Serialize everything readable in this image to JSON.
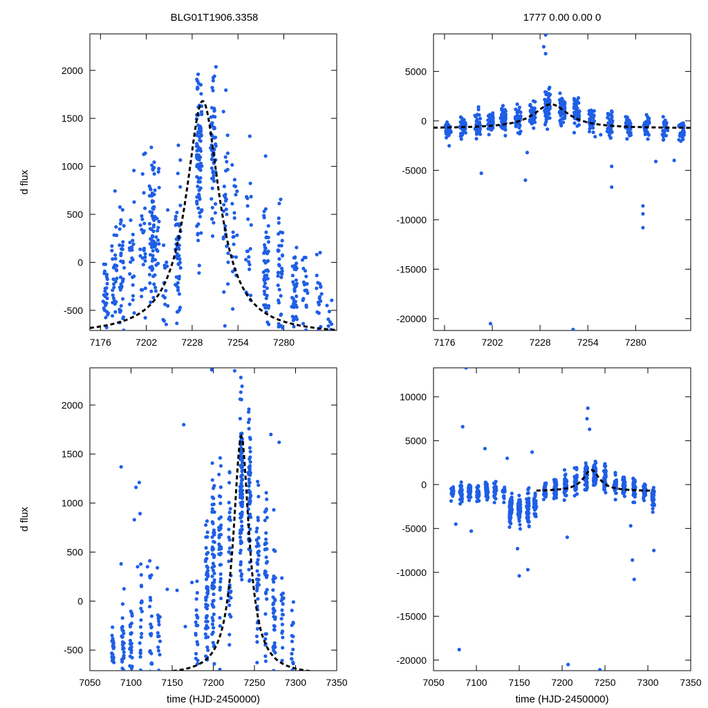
{
  "page": {
    "title_left": "BLG01T1906.3358",
    "title_right": "1777  0.00  0.00  0"
  },
  "colors": {
    "points": "#1f5fe6",
    "fit": "#000000"
  },
  "chart_data": [
    {
      "id": "p1",
      "type": "scatter",
      "xlim": [
        7170,
        7310
      ],
      "ylim": [
        -710,
        2380
      ],
      "xticks": [
        7176,
        7202,
        7228,
        7254,
        7280
      ],
      "yticks": [
        -500,
        0,
        500,
        1000,
        1500,
        2000
      ],
      "xlabel": "",
      "ylabel": "d flux",
      "fit": {
        "t0": 7234,
        "peak": 1680,
        "base": -760,
        "tE": 11.5
      },
      "segments": [
        {
          "t": 7179,
          "n": 30,
          "mean": -350,
          "sd": 250
        },
        {
          "t": 7184,
          "n": 30,
          "mean": -150,
          "sd": 300
        },
        {
          "t": 7188,
          "n": 40,
          "mean": -100,
          "sd": 400
        },
        {
          "t": 7194,
          "n": 25,
          "mean": 0,
          "sd": 400
        },
        {
          "t": 7200,
          "n": 30,
          "mean": 200,
          "sd": 400
        },
        {
          "t": 7205,
          "n": 60,
          "mean": 400,
          "sd": 400
        },
        {
          "t": 7208,
          "n": 25,
          "mean": 300,
          "sd": 450
        },
        {
          "t": 7213,
          "n": 15,
          "mean": 0,
          "sd": 400
        },
        {
          "t": 7220,
          "n": 50,
          "mean": 100,
          "sd": 400
        },
        {
          "t": 7232,
          "n": 90,
          "mean": 1100,
          "sd": 450
        },
        {
          "t": 7240,
          "n": 60,
          "mean": 1200,
          "sd": 400
        },
        {
          "t": 7247,
          "n": 30,
          "mean": 500,
          "sd": 550
        },
        {
          "t": 7252,
          "n": 20,
          "mean": 200,
          "sd": 500
        },
        {
          "t": 7260,
          "n": 20,
          "mean": 300,
          "sd": 400
        },
        {
          "t": 7270,
          "n": 50,
          "mean": 0,
          "sd": 400
        },
        {
          "t": 7278,
          "n": 40,
          "mean": -100,
          "sd": 350
        },
        {
          "t": 7286,
          "n": 40,
          "mean": -300,
          "sd": 300
        },
        {
          "t": 7292,
          "n": 20,
          "mean": -200,
          "sd": 300
        },
        {
          "t": 7300,
          "n": 20,
          "mean": -400,
          "sd": 250
        },
        {
          "t": 7306,
          "n": 10,
          "mean": -600,
          "sd": 150
        }
      ]
    },
    {
      "id": "p2",
      "type": "scatter",
      "xlim": [
        7170,
        7310
      ],
      "ylim": [
        -21200,
        8800
      ],
      "xticks": [
        7176,
        7202,
        7228,
        7254,
        7280
      ],
      "yticks": [
        -20000,
        -15000,
        -10000,
        -5000,
        0,
        5000
      ],
      "xlabel": "",
      "ylabel": "",
      "fit": {
        "t0": 7234,
        "peak": 1680,
        "base": -760,
        "tE": 11.5
      },
      "segments": [
        {
          "t": 7178,
          "n": 30,
          "mean": -1000,
          "sd": 500
        },
        {
          "t": 7186,
          "n": 40,
          "mean": -600,
          "sd": 500
        },
        {
          "t": 7194,
          "n": 40,
          "mean": -300,
          "sd": 600
        },
        {
          "t": 7201,
          "n": 40,
          "mean": -100,
          "sd": 600
        },
        {
          "t": 7208,
          "n": 60,
          "mean": 0,
          "sd": 600
        },
        {
          "t": 7216,
          "n": 50,
          "mean": 200,
          "sd": 600
        },
        {
          "t": 7224,
          "n": 40,
          "mean": 500,
          "sd": 700
        },
        {
          "t": 7232,
          "n": 80,
          "mean": 1500,
          "sd": 800
        },
        {
          "t": 7240,
          "n": 60,
          "mean": 1200,
          "sd": 700
        },
        {
          "t": 7248,
          "n": 40,
          "mean": 800,
          "sd": 700
        },
        {
          "t": 7256,
          "n": 30,
          "mean": 200,
          "sd": 600
        },
        {
          "t": 7266,
          "n": 40,
          "mean": -300,
          "sd": 600
        },
        {
          "t": 7276,
          "n": 40,
          "mean": -600,
          "sd": 600
        },
        {
          "t": 7286,
          "n": 40,
          "mean": -600,
          "sd": 600
        },
        {
          "t": 7296,
          "n": 30,
          "mean": -800,
          "sd": 500
        },
        {
          "t": 7305,
          "n": 30,
          "mean": -1000,
          "sd": 500
        }
      ],
      "outliers": [
        [
          7231,
          8700
        ],
        [
          7230,
          7500
        ],
        [
          7231,
          6800
        ],
        [
          7196,
          -5300
        ],
        [
          7220,
          -6000
        ],
        [
          7221,
          -3200
        ],
        [
          7267,
          -4600
        ],
        [
          7267,
          -6700
        ],
        [
          7284,
          -8600
        ],
        [
          7284,
          -10800
        ],
        [
          7284,
          -9400
        ],
        [
          7291,
          -4100
        ],
        [
          7301,
          -4000
        ],
        [
          7201,
          -20500
        ],
        [
          7246,
          -21100
        ],
        [
          7261,
          -1400
        ],
        [
          7258,
          -1600
        ]
      ]
    },
    {
      "id": "p3",
      "type": "scatter",
      "xlim": [
        7050,
        7350
      ],
      "ylim": [
        -710,
        2380
      ],
      "xticks": [
        7050,
        7100,
        7150,
        7200,
        7250,
        7300,
        7350
      ],
      "yticks": [
        -500,
        0,
        500,
        1000,
        1500,
        2000
      ],
      "xlabel": "time (HJD-2450000)",
      "ylabel": "d flux",
      "fit": {
        "t0": 7234,
        "peak": 1680,
        "base": -760,
        "tE": 11.5
      },
      "segments": [
        {
          "t": 7078,
          "n": 25,
          "mean": -500,
          "sd": 150
        },
        {
          "t": 7090,
          "n": 30,
          "mean": -450,
          "sd": 300
        },
        {
          "t": 7100,
          "n": 30,
          "mean": -450,
          "sd": 300
        },
        {
          "t": 7112,
          "n": 25,
          "mean": -400,
          "sd": 350
        },
        {
          "t": 7124,
          "n": 25,
          "mean": -350,
          "sd": 350
        },
        {
          "t": 7134,
          "n": 15,
          "mean": -400,
          "sd": 250
        },
        {
          "t": 7180,
          "n": 20,
          "mean": -450,
          "sd": 250
        },
        {
          "t": 7192,
          "n": 60,
          "mean": 100,
          "sd": 400
        },
        {
          "t": 7200,
          "n": 60,
          "mean": 300,
          "sd": 450
        },
        {
          "t": 7208,
          "n": 40,
          "mean": 600,
          "sd": 500
        },
        {
          "t": 7220,
          "n": 30,
          "mean": 500,
          "sd": 450
        },
        {
          "t": 7234,
          "n": 100,
          "mean": 1200,
          "sd": 450
        },
        {
          "t": 7244,
          "n": 60,
          "mean": 1000,
          "sd": 450
        },
        {
          "t": 7254,
          "n": 40,
          "mean": 400,
          "sd": 500
        },
        {
          "t": 7264,
          "n": 40,
          "mean": 200,
          "sd": 450
        },
        {
          "t": 7274,
          "n": 40,
          "mean": -100,
          "sd": 400
        },
        {
          "t": 7284,
          "n": 20,
          "mean": -300,
          "sd": 300
        },
        {
          "t": 7296,
          "n": 15,
          "mean": -450,
          "sd": 200
        }
      ],
      "outliers": [
        [
          7088,
          1370
        ],
        [
          7106,
          1160
        ],
        [
          7110,
          1210
        ],
        [
          7104,
          830
        ],
        [
          7088,
          380
        ],
        [
          7108,
          350
        ],
        [
          7120,
          350
        ],
        [
          7132,
          340
        ],
        [
          7144,
          120
        ],
        [
          7156,
          110
        ],
        [
          7164,
          1800
        ],
        [
          7174,
          190
        ],
        [
          7166,
          -260
        ],
        [
          7198,
          2360
        ],
        [
          7226,
          2350
        ],
        [
          7280,
          1620
        ],
        [
          7270,
          1700
        ]
      ]
    },
    {
      "id": "p4",
      "type": "scatter",
      "xlim": [
        7050,
        7350
      ],
      "ylim": [
        -21200,
        13300
      ],
      "xticks": [
        7050,
        7100,
        7150,
        7200,
        7250,
        7300,
        7350
      ],
      "yticks": [
        -20000,
        -15000,
        -10000,
        -5000,
        0,
        5000,
        10000
      ],
      "xlabel": "time (HJD-2450000)",
      "ylabel": "",
      "fit": {
        "t0": 7234,
        "peak": 1680,
        "base": -760,
        "tE": 11.5,
        "from": 7170,
        "to": 7306
      },
      "segments": [
        {
          "t": 7072,
          "n": 20,
          "mean": -1000,
          "sd": 450
        },
        {
          "t": 7082,
          "n": 35,
          "mean": -800,
          "sd": 500
        },
        {
          "t": 7092,
          "n": 35,
          "mean": -800,
          "sd": 500
        },
        {
          "t": 7102,
          "n": 30,
          "mean": -900,
          "sd": 500
        },
        {
          "t": 7112,
          "n": 30,
          "mean": -700,
          "sd": 500
        },
        {
          "t": 7122,
          "n": 25,
          "mean": -800,
          "sd": 500
        },
        {
          "t": 7132,
          "n": 15,
          "mean": -900,
          "sd": 500
        },
        {
          "t": 7140,
          "n": 60,
          "mean": -2800,
          "sd": 800
        },
        {
          "t": 7150,
          "n": 60,
          "mean": -2800,
          "sd": 800
        },
        {
          "t": 7160,
          "n": 50,
          "mean": -2600,
          "sd": 800
        },
        {
          "t": 7168,
          "n": 30,
          "mean": -2500,
          "sd": 700
        },
        {
          "t": 7180,
          "n": 30,
          "mean": -800,
          "sd": 500
        },
        {
          "t": 7192,
          "n": 40,
          "mean": -500,
          "sd": 600
        },
        {
          "t": 7204,
          "n": 50,
          "mean": 0,
          "sd": 700
        },
        {
          "t": 7216,
          "n": 40,
          "mean": 200,
          "sd": 700
        },
        {
          "t": 7228,
          "n": 60,
          "mean": 1000,
          "sd": 800
        },
        {
          "t": 7238,
          "n": 60,
          "mean": 1200,
          "sd": 700
        },
        {
          "t": 7250,
          "n": 40,
          "mean": 600,
          "sd": 700
        },
        {
          "t": 7262,
          "n": 30,
          "mean": 0,
          "sd": 700
        },
        {
          "t": 7272,
          "n": 40,
          "mean": -300,
          "sd": 600
        },
        {
          "t": 7284,
          "n": 40,
          "mean": -600,
          "sd": 600
        },
        {
          "t": 7296,
          "n": 30,
          "mean": -800,
          "sd": 500
        },
        {
          "t": 7306,
          "n": 30,
          "mean": -1400,
          "sd": 700
        }
      ],
      "outliers": [
        [
          7088,
          13300
        ],
        [
          7084,
          6600
        ],
        [
          7110,
          4100
        ],
        [
          7136,
          3000
        ],
        [
          7165,
          3700
        ],
        [
          7076,
          -4500
        ],
        [
          7094,
          -5300
        ],
        [
          7148,
          -7300
        ],
        [
          7150,
          -10400
        ],
        [
          7160,
          -9700
        ],
        [
          7230,
          8700
        ],
        [
          7229,
          7500
        ],
        [
          7232,
          6300
        ],
        [
          7280,
          -4700
        ],
        [
          7282,
          -8600
        ],
        [
          7284,
          -10800
        ],
        [
          7307,
          -7500
        ],
        [
          7206,
          -6000
        ],
        [
          7080,
          -18800
        ],
        [
          7207,
          -20500
        ],
        [
          7244,
          -21100
        ],
        [
          7170,
          -2500
        ]
      ]
    }
  ]
}
